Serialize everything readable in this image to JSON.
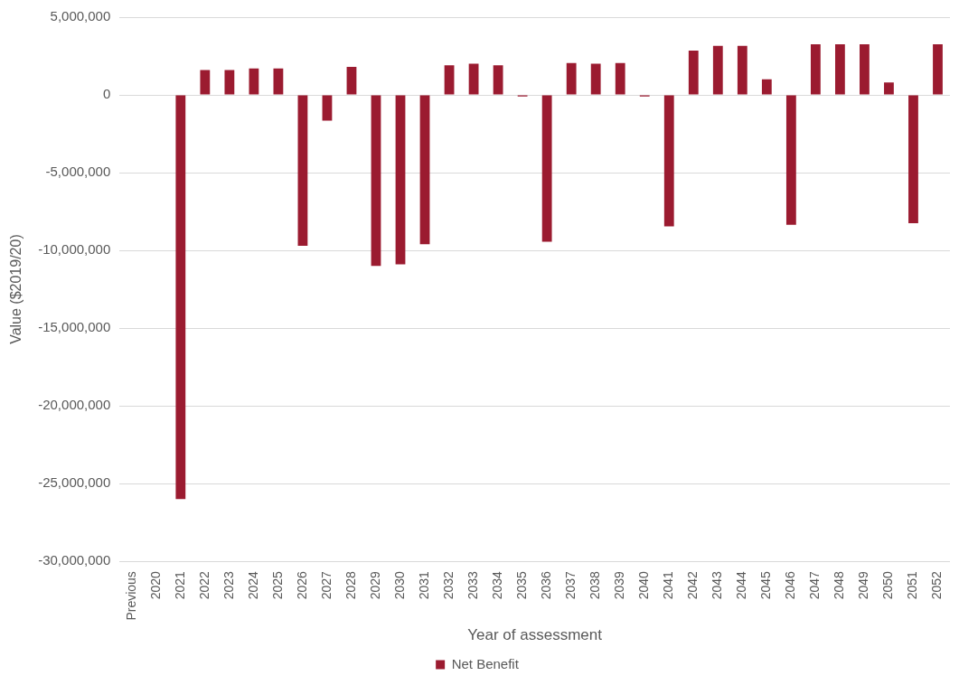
{
  "chart_data": {
    "type": "bar",
    "xlabel": "Year of assessment",
    "ylabel": "Value ($2019/20)",
    "categories": [
      "Previous",
      "2020",
      "2021",
      "2022",
      "2023",
      "2024",
      "2025",
      "2026",
      "2027",
      "2028",
      "2029",
      "2030",
      "2031",
      "2032",
      "2033",
      "2034",
      "2035",
      "2036",
      "2037",
      "2038",
      "2039",
      "2040",
      "2041",
      "2042",
      "2043",
      "2044",
      "2045",
      "2046",
      "2047",
      "2048",
      "2049",
      "2050",
      "2051",
      "2052"
    ],
    "series": [
      {
        "name": "Net Benefit",
        "color": "#9b1b30",
        "values": [
          0,
          0,
          -26000000,
          1600000,
          1600000,
          1700000,
          1700000,
          -9700000,
          -1650000,
          1800000,
          -11000000,
          -10900000,
          -9600000,
          1900000,
          2000000,
          1900000,
          -100000,
          -9450000,
          2050000,
          2000000,
          2050000,
          -100000,
          -8450000,
          2850000,
          3150000,
          3150000,
          1000000,
          -8350000,
          3250000,
          3250000,
          3250000,
          800000,
          -8250000,
          3250000
        ]
      }
    ],
    "ylim": [
      -30000000,
      5000000
    ],
    "yticks": [
      {
        "value": -30000000,
        "label": "-30,000,000"
      },
      {
        "value": -25000000,
        "label": "-25,000,000"
      },
      {
        "value": -20000000,
        "label": "-20,000,000"
      },
      {
        "value": -15000000,
        "label": "-15,000,000"
      },
      {
        "value": -10000000,
        "label": "-10,000,000"
      },
      {
        "value": -5000000,
        "label": "-5,000,000"
      },
      0,
      {
        "value": 5000000,
        "label": "5,000,000"
      }
    ],
    "grid": "y",
    "legend": "bottom"
  }
}
